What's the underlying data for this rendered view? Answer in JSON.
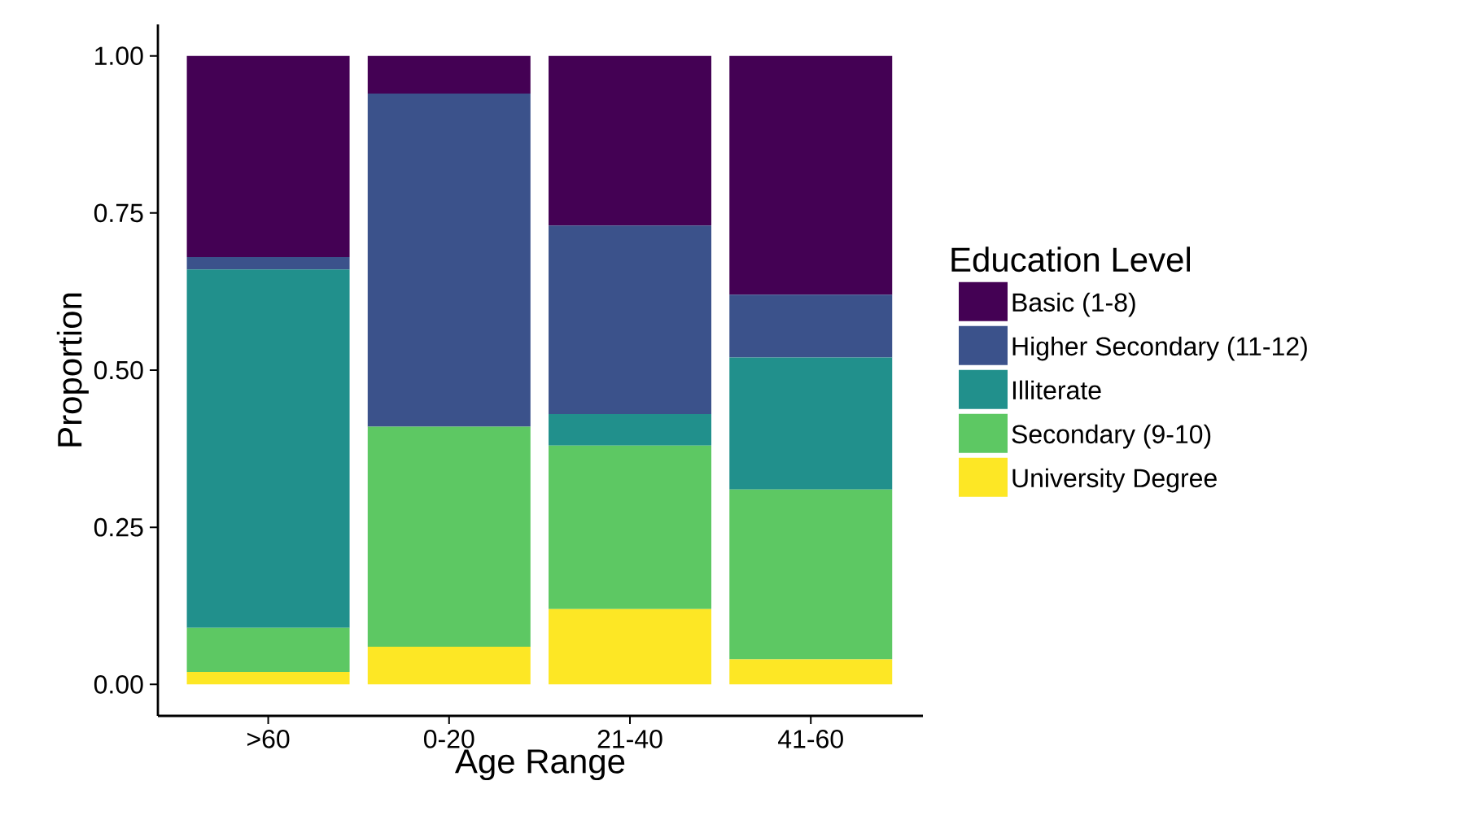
{
  "chart_data": {
    "type": "bar",
    "stacked": true,
    "xlabel": "Age Range",
    "ylabel": "Proportion",
    "legend_title": "Education Level",
    "legend": "right",
    "categories": [
      ">60",
      "0-20",
      "21-40",
      "41-60"
    ],
    "series": [
      {
        "name": "University Degree",
        "color": "#fde725",
        "values": [
          0.02,
          0.06,
          0.12,
          0.04
        ]
      },
      {
        "name": "Secondary (9-10)",
        "color": "#5dc863",
        "values": [
          0.07,
          0.35,
          0.26,
          0.27
        ]
      },
      {
        "name": "Illiterate",
        "color": "#21908c",
        "values": [
          0.57,
          0,
          0.05,
          0.21
        ]
      },
      {
        "name": "Higher Secondary (11-12)",
        "color": "#3b528b",
        "values": [
          0.02,
          0.53,
          0.3,
          0.1
        ]
      },
      {
        "name": "Basic (1-8)",
        "color": "#440154",
        "values": [
          0.32,
          0.06,
          0.27,
          0.38
        ]
      }
    ],
    "ylim": [
      -0.05,
      1.05
    ],
    "yticks": [
      {
        "value": 0,
        "label": "0.00"
      },
      {
        "value": 0.25,
        "label": "0.25"
      },
      {
        "value": 0.5,
        "label": "0.50"
      },
      {
        "value": 0.75,
        "label": "0.75"
      },
      {
        "value": 1,
        "label": "1.00"
      }
    ]
  }
}
